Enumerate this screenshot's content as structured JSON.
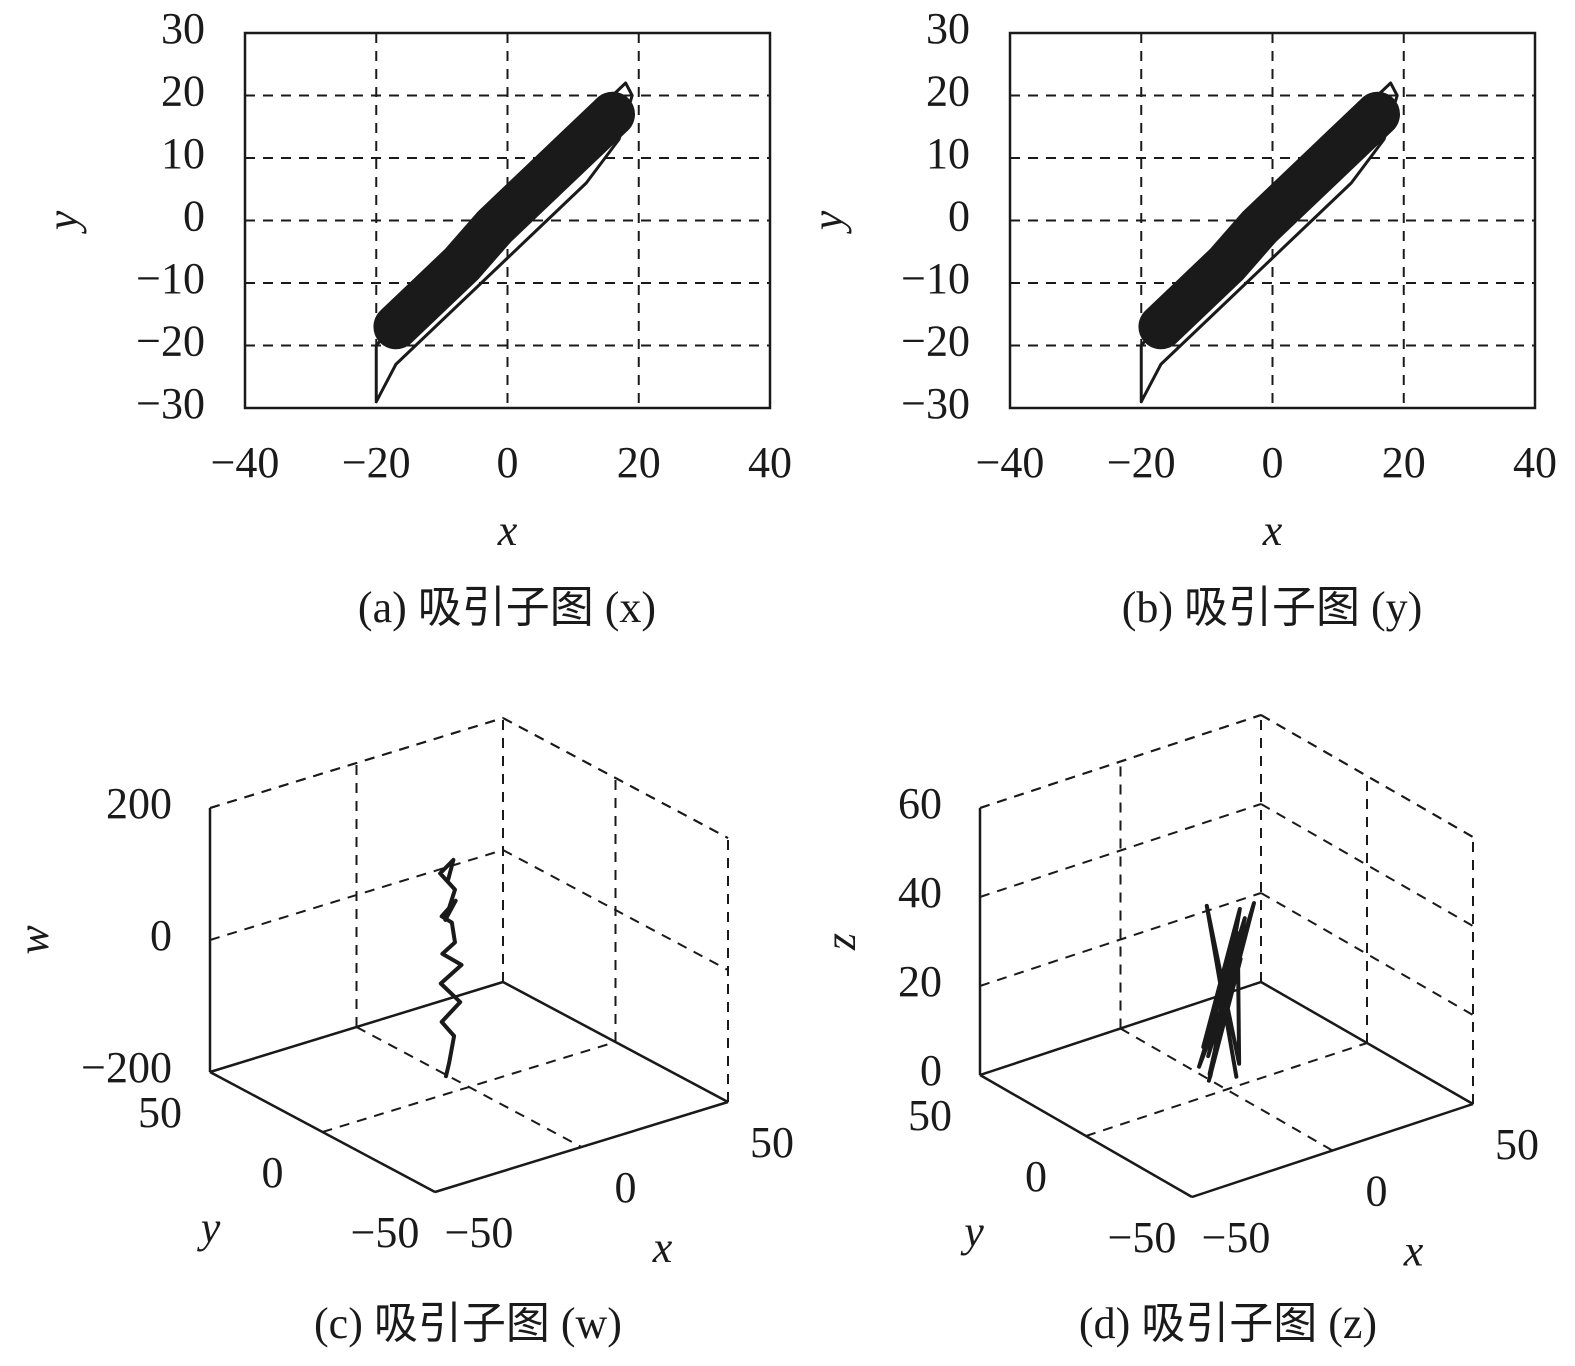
{
  "chart_data": [
    {
      "type": "line",
      "caption": "(a) 吸引子图 (x)",
      "xlabel": "x",
      "ylabel": "y",
      "xlim": [
        -40,
        40
      ],
      "ylim": [
        -30,
        30
      ],
      "xticks": [
        {
          "value": -40,
          "label": "−40"
        },
        {
          "value": -20,
          "label": "−20"
        },
        0,
        20,
        40
      ],
      "yticks": [
        {
          "value": -30,
          "label": "−30"
        },
        {
          "value": -20,
          "label": "−20"
        },
        {
          "value": -10,
          "label": "−10"
        },
        0,
        10,
        20,
        30
      ],
      "grid": true,
      "series": [
        {
          "color": "#1a1a1a",
          "line_width": 45,
          "x": [
            -17,
            -12,
            -7,
            -2,
            3,
            8,
            13,
            16
          ],
          "values": [
            -17,
            -12,
            -7,
            -1,
            4,
            9,
            14,
            17
          ]
        },
        {
          "color": "#1a1a1a",
          "line_width": 3,
          "x": [
            -20,
            -20,
            -16,
            -10,
            -4,
            2,
            8,
            14,
            18,
            19,
            17,
            12,
            6,
            0,
            -6,
            -12,
            -17,
            -20
          ],
          "values": [
            -29,
            -20,
            -15,
            -9,
            -3,
            4,
            10,
            18,
            22,
            20,
            13,
            6,
            0,
            -6,
            -12,
            -18,
            -23,
            -29
          ]
        }
      ]
    },
    {
      "type": "line",
      "caption": "(b) 吸引子图 (y)",
      "xlabel": "x",
      "ylabel": "y",
      "xlim": [
        -40,
        40
      ],
      "ylim": [
        -30,
        30
      ],
      "xticks": [
        {
          "value": -40,
          "label": "−40"
        },
        {
          "value": -20,
          "label": "−20"
        },
        0,
        20,
        40
      ],
      "yticks": [
        {
          "value": -30,
          "label": "−30"
        },
        {
          "value": -20,
          "label": "−20"
        },
        {
          "value": -10,
          "label": "−10"
        },
        0,
        10,
        20,
        30
      ],
      "grid": true,
      "series": [
        {
          "color": "#1a1a1a",
          "line_width": 45,
          "x": [
            -17,
            -12,
            -7,
            -2,
            3,
            8,
            13,
            16
          ],
          "values": [
            -17,
            -12,
            -7,
            -1,
            4,
            9,
            14,
            17
          ]
        },
        {
          "color": "#1a1a1a",
          "line_width": 3,
          "x": [
            -20,
            -20,
            -16,
            -10,
            -4,
            2,
            8,
            14,
            18,
            19,
            17,
            12,
            6,
            0,
            -6,
            -12,
            -17,
            -20
          ],
          "values": [
            -29,
            -20,
            -15,
            -9,
            -3,
            4,
            10,
            18,
            22,
            20,
            13,
            6,
            0,
            -6,
            -12,
            -18,
            -23,
            -29
          ]
        }
      ]
    },
    {
      "type": "line3d",
      "caption": "(c) 吸引子图 (w)",
      "xlabel": "x",
      "ylabel": "y",
      "zlabel": "w",
      "xlim": [
        -50,
        50
      ],
      "ylim": [
        -50,
        50
      ],
      "zlim": [
        -200,
        200
      ],
      "xticks": [
        {
          "value": -50,
          "label": "−50"
        },
        0,
        50
      ],
      "yticks": [
        {
          "value": -50,
          "label": "−50"
        },
        0,
        50
      ],
      "zticks": [
        {
          "value": -200,
          "label": "−200"
        },
        0,
        200
      ],
      "grid": true,
      "series": [
        {
          "color": "#1a1a1a",
          "line_width": 4,
          "x": [
            -14,
            -16,
            -12,
            -17,
            -13,
            -15,
            -11,
            -16,
            -14,
            -12,
            -17,
            -13,
            -15,
            -14,
            -16,
            -13,
            -14
          ],
          "y": [
            -8,
            -12,
            -9,
            -10,
            -13,
            -7,
            -11,
            -9,
            -12,
            -8,
            -10,
            -11,
            -9,
            -12,
            -8,
            -10,
            -9
          ],
          "values": [
            -150,
            -120,
            -90,
            -60,
            -30,
            -10,
            20,
            40,
            60,
            80,
            100,
            120,
            90,
            140,
            160,
            180,
            150
          ]
        }
      ]
    },
    {
      "type": "line3d",
      "caption": "(d) 吸引子图 (z)",
      "xlabel": "x",
      "ylabel": "y",
      "zlabel": "z",
      "xlim": [
        -50,
        50
      ],
      "ylim": [
        -50,
        50
      ],
      "zlim": [
        0,
        60
      ],
      "xticks": [
        {
          "value": -50,
          "label": "−50"
        },
        0,
        50
      ],
      "yticks": [
        {
          "value": -50,
          "label": "−50"
        },
        0,
        50
      ],
      "zticks": [
        0,
        20,
        40,
        60
      ],
      "grid": true,
      "series": [
        {
          "color": "#1a1a1a",
          "line_width": 4,
          "x": [
            -4,
            2,
            -6,
            5,
            -3,
            6,
            -5,
            3,
            -2,
            4,
            -6,
            1,
            6,
            -4,
            2
          ],
          "y": [
            3,
            -4,
            5,
            -2,
            4,
            -5,
            2,
            -3,
            5,
            -1,
            3,
            -4,
            2,
            4,
            -2
          ],
          "values": [
            2,
            30,
            5,
            38,
            3,
            42,
            8,
            35,
            2,
            40,
            10,
            36,
            4,
            41,
            3
          ]
        }
      ]
    }
  ]
}
